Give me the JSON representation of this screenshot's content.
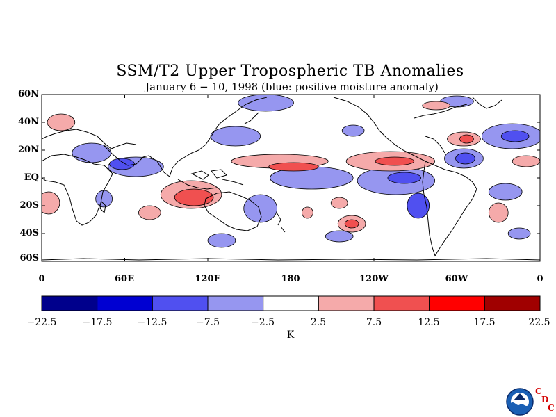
{
  "title": "SSM/T2 Upper Tropospheric TB Anomalies",
  "subtitle": "January 6 − 10, 1998 (blue: positive moisture anomaly)",
  "axes": {
    "y_ticks": [
      "60N",
      "40N",
      "20N",
      "EQ",
      "20S",
      "40S",
      "60S"
    ],
    "x_ticks": [
      "0",
      "60E",
      "120E",
      "180",
      "120W",
      "60W",
      "0"
    ]
  },
  "colorbar": {
    "levels": [
      "−22.5",
      "−17.5",
      "−12.5",
      "−7.5",
      "−2.5",
      "2.5",
      "7.5",
      "12.5",
      "17.5",
      "22.5"
    ],
    "colors": [
      "#00008c",
      "#0000d2",
      "#5050f0",
      "#9696f0",
      "#ffffff",
      "#f5aaaa",
      "#f05050",
      "#ff0000",
      "#a00000"
    ],
    "unit": "K"
  },
  "logo": {
    "icon": "noaa-logo-icon",
    "letters": [
      "C",
      "D",
      "C"
    ]
  },
  "map_data": {
    "lon_range": [
      0,
      360
    ],
    "lat_range": [
      -60,
      60
    ],
    "anomaly_blobs": [
      {
        "lon": 68,
        "lat": 8,
        "r_lon": 20,
        "r_lat": 7,
        "level": "-7.5"
      },
      {
        "lon": 58,
        "lat": 10,
        "r_lon": 9,
        "r_lat": 4,
        "level": "-12.5"
      },
      {
        "lon": 36,
        "lat": 18,
        "r_lon": 14,
        "r_lat": 7,
        "level": "-7.5"
      },
      {
        "lon": 162,
        "lat": 54,
        "r_lon": 20,
        "r_lat": 6,
        "level": "-7.5"
      },
      {
        "lon": 140,
        "lat": 30,
        "r_lon": 18,
        "r_lat": 7,
        "level": "-7.5"
      },
      {
        "lon": 195,
        "lat": 0,
        "r_lon": 30,
        "r_lat": 8,
        "level": "-7.5"
      },
      {
        "lon": 256,
        "lat": -2,
        "r_lon": 28,
        "r_lat": 10,
        "level": "-7.5"
      },
      {
        "lon": 262,
        "lat": 0,
        "r_lon": 12,
        "r_lat": 4,
        "level": "-12.5"
      },
      {
        "lon": 272,
        "lat": -20,
        "r_lon": 8,
        "r_lat": 9,
        "level": "-12.5"
      },
      {
        "lon": 305,
        "lat": 14,
        "r_lon": 14,
        "r_lat": 7,
        "level": "-7.5"
      },
      {
        "lon": 306,
        "lat": 14,
        "r_lon": 7,
        "r_lat": 4,
        "level": "-12.5"
      },
      {
        "lon": 340,
        "lat": 30,
        "r_lon": 22,
        "r_lat": 9,
        "level": "-7.5"
      },
      {
        "lon": 342,
        "lat": 30,
        "r_lon": 10,
        "r_lat": 4,
        "level": "-12.5"
      },
      {
        "lon": 335,
        "lat": -10,
        "r_lon": 12,
        "r_lat": 6,
        "level": "-7.5"
      },
      {
        "lon": 158,
        "lat": -22,
        "r_lon": 12,
        "r_lat": 10,
        "level": "-7.5"
      },
      {
        "lon": 45,
        "lat": -15,
        "r_lon": 6,
        "r_lat": 6,
        "level": "-7.5"
      },
      {
        "lon": 225,
        "lat": 34,
        "r_lon": 8,
        "r_lat": 4,
        "level": "-7.5"
      },
      {
        "lon": 215,
        "lat": -42,
        "r_lon": 10,
        "r_lat": 4,
        "level": "-7.5"
      },
      {
        "lon": 130,
        "lat": -45,
        "r_lon": 10,
        "r_lat": 5,
        "level": "-7.5"
      },
      {
        "lon": 345,
        "lat": -40,
        "r_lon": 8,
        "r_lat": 4,
        "level": "-7.5"
      },
      {
        "lon": 300,
        "lat": 55,
        "r_lon": 12,
        "r_lat": 4,
        "level": "-7.5"
      },
      {
        "lon": 108,
        "lat": -12,
        "r_lon": 22,
        "r_lat": 10,
        "level": "7.5"
      },
      {
        "lon": 110,
        "lat": -14,
        "r_lon": 14,
        "r_lat": 6,
        "level": "12.5"
      },
      {
        "lon": 172,
        "lat": 12,
        "r_lon": 35,
        "r_lat": 5,
        "level": "7.5"
      },
      {
        "lon": 182,
        "lat": 8,
        "r_lon": 18,
        "r_lat": 3,
        "level": "12.5"
      },
      {
        "lon": 252,
        "lat": 12,
        "r_lon": 32,
        "r_lat": 7,
        "level": "7.5"
      },
      {
        "lon": 255,
        "lat": 12,
        "r_lon": 14,
        "r_lat": 3,
        "level": "12.5"
      },
      {
        "lon": 305,
        "lat": 28,
        "r_lon": 12,
        "r_lat": 5,
        "level": "7.5"
      },
      {
        "lon": 307,
        "lat": 28,
        "r_lon": 5,
        "r_lat": 3,
        "level": "12.5"
      },
      {
        "lon": 14,
        "lat": 40,
        "r_lon": 10,
        "r_lat": 6,
        "level": "7.5"
      },
      {
        "lon": 5,
        "lat": -18,
        "r_lon": 8,
        "r_lat": 8,
        "level": "7.5"
      },
      {
        "lon": 224,
        "lat": -33,
        "r_lon": 10,
        "r_lat": 6,
        "level": "7.5"
      },
      {
        "lon": 224,
        "lat": -33,
        "r_lon": 5,
        "r_lat": 3,
        "level": "12.5"
      },
      {
        "lon": 192,
        "lat": -25,
        "r_lon": 4,
        "r_lat": 4,
        "level": "7.5"
      },
      {
        "lon": 215,
        "lat": -18,
        "r_lon": 6,
        "r_lat": 4,
        "level": "7.5"
      },
      {
        "lon": 78,
        "lat": -25,
        "r_lon": 8,
        "r_lat": 5,
        "level": "7.5"
      },
      {
        "lon": 330,
        "lat": -25,
        "r_lon": 7,
        "r_lat": 7,
        "level": "7.5"
      },
      {
        "lon": 350,
        "lat": 12,
        "r_lon": 10,
        "r_lat": 4,
        "level": "7.5"
      },
      {
        "lon": 285,
        "lat": 52,
        "r_lon": 10,
        "r_lat": 3,
        "level": "7.5"
      }
    ]
  }
}
